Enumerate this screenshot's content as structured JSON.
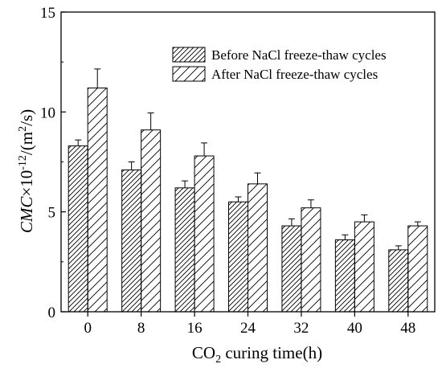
{
  "chart_data": {
    "type": "bar",
    "categories": [
      "0",
      "8",
      "16",
      "24",
      "32",
      "40",
      "48"
    ],
    "series": [
      {
        "name": "Before NaCl freeze-thaw cycles",
        "hatch": "dense",
        "values": [
          8.3,
          7.1,
          6.2,
          5.5,
          4.3,
          3.6,
          3.1
        ],
        "errors": [
          0.3,
          0.4,
          0.35,
          0.25,
          0.35,
          0.25,
          0.2
        ]
      },
      {
        "name": "After NaCl freeze-thaw cycles",
        "hatch": "sparse",
        "values": [
          11.2,
          9.1,
          7.8,
          6.4,
          5.2,
          4.5,
          4.3
        ],
        "errors": [
          0.95,
          0.85,
          0.65,
          0.55,
          0.4,
          0.35,
          0.2
        ]
      }
    ],
    "yticks": [
      "0",
      "5",
      "10",
      "15"
    ],
    "ylim": [
      0,
      15
    ],
    "xlabel": {
      "main": "CO",
      "sub": "2",
      "rest": " curing time(h)"
    },
    "ylabel": {
      "a": "CMC",
      "b": "×10",
      "exp": "-12",
      "c": "/(m",
      "exp2": "2",
      "d": "/s)"
    },
    "legend_position": "top-right",
    "colors": {
      "axis": "#000000",
      "bar_fill": "#ffffff",
      "hatch": "#000000"
    }
  }
}
